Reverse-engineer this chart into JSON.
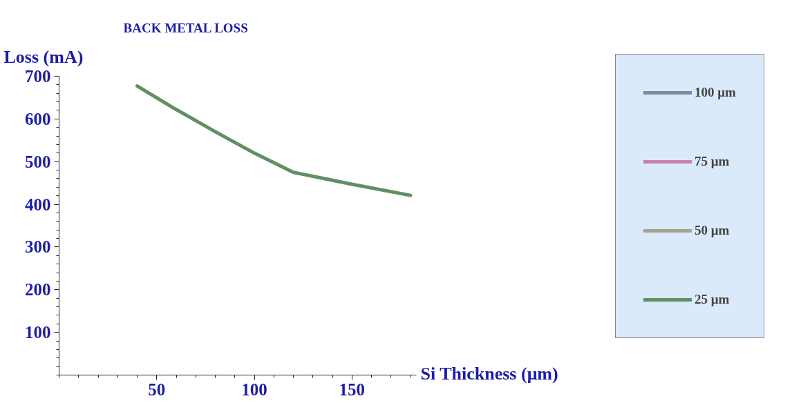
{
  "chart_data": {
    "type": "line",
    "title": "BACK METAL LOSS",
    "xlabel": "Si Thickness (μm)",
    "ylabel": "Loss (mA)",
    "x": [
      40,
      60,
      80,
      100,
      120,
      150,
      180
    ],
    "series": [
      {
        "name": "100 μm",
        "color": "#7b8ba3",
        "values": [
          null,
          null,
          null,
          null,
          null,
          null,
          null
        ]
      },
      {
        "name": "75 μm",
        "color": "#c483b5",
        "values": [
          null,
          null,
          null,
          null,
          null,
          null,
          null
        ]
      },
      {
        "name": "50 μm",
        "color": "#a3a392",
        "values": [
          null,
          null,
          null,
          null,
          null,
          null,
          null
        ]
      },
      {
        "name": "25 μm",
        "color": "#5f8f62",
        "values": [
          677,
          622,
          570,
          520,
          475,
          447,
          421
        ]
      }
    ],
    "xlim": [
      0,
      183
    ],
    "ylim": [
      0,
      700
    ],
    "xticks": [
      50,
      100,
      150
    ],
    "yticks": [
      100,
      200,
      300,
      400,
      500,
      600,
      700
    ],
    "grid": false,
    "legend": "right",
    "marker": "none",
    "line_style": "solid"
  }
}
